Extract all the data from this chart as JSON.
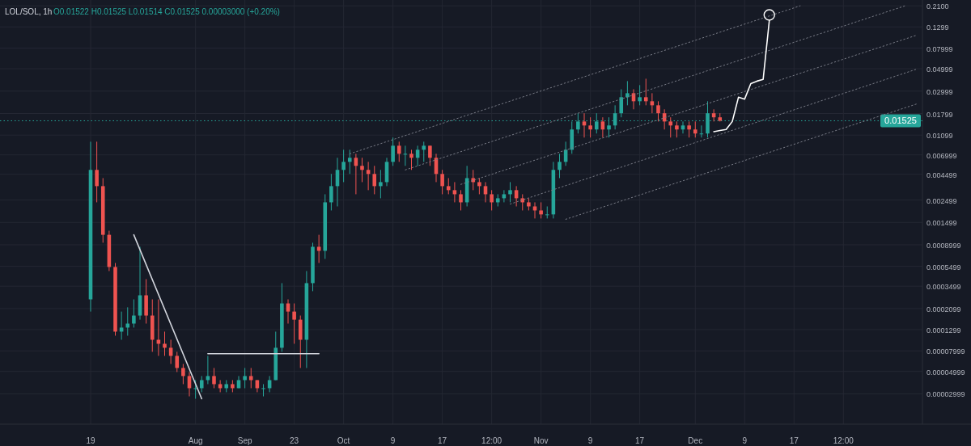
{
  "chart_data": {
    "type": "candlestick",
    "title": "LOL/SOL, 1h",
    "subtitle": "O0.01522 H0.01525 L0.01514 C0.01525 0.00003000 (+0.20%)",
    "log": true,
    "grid": true,
    "ylim": [
      1.5e-05,
      0.24
    ],
    "yticks": [
      {
        "value": 0.21,
        "label": "0.2100"
      },
      0.1299,
      0.07999,
      0.04999,
      0.02999,
      0.01799,
      0.01099,
      0.006999,
      0.004499,
      0.002499,
      0.001499,
      0.0008999,
      0.0005499,
      0.0003499,
      0.0002099,
      0.0001299,
      {
        "value": 7.999e-05,
        "label": "0.00007999"
      },
      {
        "value": 4.999e-05,
        "label": "0.00004999"
      },
      {
        "value": 2.999e-05,
        "label": "0.00002999"
      }
    ],
    "categories": [
      "19",
      null,
      null,
      null,
      null,
      null,
      null,
      null,
      null,
      null,
      null,
      null,
      null,
      null,
      null,
      null,
      null,
      "Aug",
      null,
      null,
      null,
      null,
      null,
      null,
      null,
      "Sep",
      null,
      null,
      null,
      null,
      null,
      null,
      null,
      "23",
      null,
      null,
      null,
      null,
      null,
      null,
      null,
      "Oct",
      null,
      null,
      null,
      null,
      null,
      null,
      null,
      "9",
      null,
      null,
      null,
      null,
      null,
      null,
      null,
      "17",
      null,
      null,
      null,
      null,
      null,
      null,
      null,
      "12:00",
      null,
      null,
      null,
      null,
      null,
      null,
      null,
      "Nov",
      null,
      null,
      null,
      null,
      null,
      null,
      null,
      "9",
      null,
      null,
      null,
      null,
      null,
      null,
      null,
      "17",
      null,
      null,
      null,
      null,
      null,
      null,
      null,
      null,
      "Dec",
      null,
      null,
      null,
      null,
      null,
      null,
      null,
      "9",
      null,
      null,
      null,
      null,
      null,
      null,
      null,
      "17",
      null,
      null,
      null,
      null,
      null,
      null,
      null,
      "12:00",
      null,
      null,
      null,
      null,
      null,
      null,
      null,
      null,
      null,
      null,
      null,
      null
    ],
    "ohlc": [
      [
        0.000259,
        0.00946,
        0.000196,
        0.00497
      ],
      [
        0.00497,
        0.00946,
        0.00237,
        0.00343
      ],
      [
        0.00343,
        0.00412,
        0.000943,
        0.00113
      ],
      [
        0.00113,
        0.00124,
        0.000494,
        0.000542
      ],
      [
        0.000542,
        0.000594,
        0.000113,
        0.000124
      ],
      [
        0.000124,
        0.000196,
        0.000103,
        0.000136
      ],
      [
        0.000136,
        0.000216,
        0.000113,
        0.000149
      ],
      [
        0.000149,
        0.000259,
        0.000136,
        0.000179
      ],
      [
        0.000179,
        0.00086,
        0.000163,
        0.000284
      ],
      [
        0.000284,
        0.000411,
        0.000149,
        0.000179
      ],
      [
        0.000179,
        0.000259,
        7.82e-05,
        0.000103
      ],
      [
        0.000103,
        0.000259,
        7.13e-05,
        9.4e-05
      ],
      [
        9.4e-05,
        0.000124,
        7.13e-05,
        8.58e-05
      ],
      [
        8.58e-05,
        0.000103,
        5.93e-05,
        7.13e-05
      ],
      [
        7.13e-05,
        7.82e-05,
        4.93e-05,
        5.41e-05
      ],
      [
        5.41e-05,
        5.93e-05,
        3.74e-05,
        4.5e-05
      ],
      [
        4.5e-05,
        4.93e-05,
        2.83e-05,
        3.41e-05
      ],
      [
        3.41e-05,
        4.1e-05,
        2.68e-05,
        3.41e-05
      ],
      [
        3.41e-05,
        4.5e-05,
        3.11e-05,
        4.1e-05
      ],
      [
        4.1e-05,
        7.13e-05,
        3.74e-05,
        4.5e-05
      ],
      [
        4.5e-05,
        5.41e-05,
        3.41e-05,
        3.74e-05
      ],
      [
        3.74e-05,
        4.1e-05,
        3.11e-05,
        3.41e-05
      ],
      [
        3.41e-05,
        4.1e-05,
        3.11e-05,
        3.74e-05
      ],
      [
        3.74e-05,
        4.1e-05,
        3.11e-05,
        3.41e-05
      ],
      [
        3.41e-05,
        4.5e-05,
        3.41e-05,
        4.1e-05
      ],
      [
        4.1e-05,
        5.41e-05,
        3.41e-05,
        4.5e-05
      ],
      [
        4.5e-05,
        5.41e-05,
        3.41e-05,
        4.1e-05
      ],
      [
        4.1e-05,
        4.1e-05,
        3.11e-05,
        3.41e-05
      ],
      [
        3.41e-05,
        3.74e-05,
        2.83e-05,
        3.41e-05
      ],
      [
        3.41e-05,
        4.5e-05,
        3.11e-05,
        4.1e-05
      ],
      [
        4.1e-05,
        0.000124,
        4.1e-05,
        8.58e-05
      ],
      [
        8.58e-05,
        0.000375,
        7.82e-05,
        0.000236
      ],
      [
        0.000236,
        0.000259,
        0.000149,
        0.000196
      ],
      [
        0.000196,
        0.000236,
        9.4e-05,
        0.000163
      ],
      [
        0.000163,
        0.000179,
        5.41e-05,
        0.000103
      ],
      [
        0.000103,
        0.000494,
        5.41e-05,
        0.000375
      ],
      [
        0.000375,
        0.000943,
        0.000312,
        0.00086
      ],
      [
        0.00086,
        0.00113,
        0.000594,
        0.000784
      ],
      [
        0.000784,
        0.00285,
        0.000652,
        0.00237
      ],
      [
        0.00237,
        0.00453,
        0.00197,
        0.00343
      ],
      [
        0.00343,
        0.00655,
        0.00216,
        0.00497
      ],
      [
        0.00497,
        0.00787,
        0.00376,
        0.00597
      ],
      [
        0.00597,
        0.00787,
        0.00453,
        0.00655
      ],
      [
        0.00655,
        0.00718,
        0.00285,
        0.00545
      ],
      [
        0.00545,
        0.00655,
        0.00376,
        0.00497
      ],
      [
        0.00497,
        0.00597,
        0.00313,
        0.00453
      ],
      [
        0.00453,
        0.00545,
        0.00285,
        0.00343
      ],
      [
        0.00343,
        0.00497,
        0.0026,
        0.00376
      ],
      [
        0.00376,
        0.00655,
        0.00343,
        0.00597
      ],
      [
        0.00597,
        0.0104,
        0.00545,
        0.00863
      ],
      [
        0.00863,
        0.00946,
        0.00597,
        0.00718
      ],
      [
        0.00718,
        0.00863,
        0.00545,
        0.00718
      ],
      [
        0.00718,
        0.00787,
        0.00497,
        0.00655
      ],
      [
        0.00655,
        0.00863,
        0.00545,
        0.00787
      ],
      [
        0.00787,
        0.00946,
        0.00597,
        0.00863
      ],
      [
        0.00863,
        0.00863,
        0.00545,
        0.00655
      ],
      [
        0.00655,
        0.00718,
        0.00376,
        0.00453
      ],
      [
        0.00453,
        0.00497,
        0.00285,
        0.00343
      ],
      [
        0.00343,
        0.00412,
        0.00285,
        0.00313
      ],
      [
        0.00313,
        0.00376,
        0.00237,
        0.00285
      ],
      [
        0.00285,
        0.00313,
        0.00197,
        0.00237
      ],
      [
        0.00237,
        0.00545,
        0.00216,
        0.00412
      ],
      [
        0.00412,
        0.00497,
        0.00313,
        0.00376
      ],
      [
        0.00376,
        0.00412,
        0.00285,
        0.00343
      ],
      [
        0.00343,
        0.00376,
        0.00237,
        0.00285
      ],
      [
        0.00285,
        0.00313,
        0.00197,
        0.00237
      ],
      [
        0.00237,
        0.00285,
        0.00216,
        0.0026
      ],
      [
        0.0026,
        0.00313,
        0.00237,
        0.00285
      ],
      [
        0.00285,
        0.00376,
        0.00237,
        0.00313
      ],
      [
        0.00313,
        0.00343,
        0.00216,
        0.0026
      ],
      [
        0.0026,
        0.00285,
        0.00197,
        0.00237
      ],
      [
        0.00237,
        0.0026,
        0.00197,
        0.00216
      ],
      [
        0.00216,
        0.00237,
        0.00164,
        0.00197
      ],
      [
        0.00197,
        0.00237,
        0.00164,
        0.0018
      ],
      [
        0.0018,
        0.00216,
        0.00164,
        0.0018
      ],
      [
        0.0018,
        0.00597,
        0.00164,
        0.00497
      ],
      [
        0.00497,
        0.00718,
        0.00412,
        0.00597
      ],
      [
        0.00597,
        0.00946,
        0.00545,
        0.00787
      ],
      [
        0.00787,
        0.015,
        0.00718,
        0.0125
      ],
      [
        0.0125,
        0.0181,
        0.0114,
        0.015
      ],
      [
        0.015,
        0.0181,
        0.0104,
        0.0137
      ],
      [
        0.0137,
        0.0165,
        0.0104,
        0.0125
      ],
      [
        0.0125,
        0.0181,
        0.0114,
        0.015
      ],
      [
        0.015,
        0.0165,
        0.0104,
        0.0125
      ],
      [
        0.0125,
        0.0165,
        0.0104,
        0.0137
      ],
      [
        0.0137,
        0.0217,
        0.0125,
        0.0181
      ],
      [
        0.0181,
        0.0313,
        0.0165,
        0.0261
      ],
      [
        0.0261,
        0.0377,
        0.0217,
        0.0286
      ],
      [
        0.0286,
        0.0313,
        0.0198,
        0.0238
      ],
      [
        0.0238,
        0.0344,
        0.0217,
        0.0261
      ],
      [
        0.0261,
        0.0398,
        0.0217,
        0.0238
      ],
      [
        0.0238,
        0.0286,
        0.0181,
        0.0217
      ],
      [
        0.0217,
        0.0238,
        0.015,
        0.0181
      ],
      [
        0.0181,
        0.0198,
        0.0125,
        0.015
      ],
      [
        0.015,
        0.0165,
        0.0104,
        0.0137
      ],
      [
        0.0137,
        0.015,
        0.0104,
        0.0125
      ],
      [
        0.0125,
        0.015,
        0.0114,
        0.0137
      ],
      [
        0.0137,
        0.015,
        0.0104,
        0.0125
      ],
      [
        0.0125,
        0.015,
        0.0104,
        0.0114
      ],
      [
        0.0114,
        0.0137,
        0.0104,
        0.0114
      ],
      [
        0.0114,
        0.0238,
        0.0104,
        0.0181
      ],
      [
        0.0181,
        0.0198,
        0.015,
        0.0165
      ],
      [
        0.0165,
        0.0181,
        0.015,
        0.01525
      ],
      null,
      null,
      null,
      null,
      null,
      null,
      null,
      null,
      null,
      null,
      null,
      null,
      null,
      null,
      null,
      null,
      null,
      null,
      null,
      null,
      null,
      null,
      null,
      null,
      null,
      null,
      null,
      null,
      null,
      null,
      null,
      null
    ],
    "series": [
      {
        "type": "line",
        "color": "#d1d4dc",
        "line_style": "solid",
        "values": [
          null,
          null,
          null,
          null,
          null,
          null,
          null,
          0.00113,
          null,
          null,
          null,
          null,
          null,
          null,
          null,
          null,
          null,
          null,
          2.68e-05,
          null,
          null,
          null,
          null,
          null,
          null,
          null,
          null,
          null,
          null,
          null,
          null,
          null,
          null,
          null,
          null,
          null,
          null,
          null,
          null,
          null,
          null,
          null,
          null,
          null,
          null,
          null,
          null,
          null,
          null,
          null,
          null,
          null,
          null,
          null,
          null,
          null,
          null,
          null,
          null,
          null,
          null,
          null,
          null,
          null,
          null,
          null,
          null,
          null,
          null,
          null,
          null,
          null,
          null,
          null,
          null,
          null,
          null,
          null,
          null,
          null,
          null,
          null,
          null,
          null,
          null,
          null,
          null,
          null,
          null,
          null,
          null,
          null,
          null,
          null,
          null,
          null,
          null,
          null,
          null,
          null,
          null,
          null,
          null,
          null,
          null,
          null,
          null,
          null,
          null,
          null,
          null,
          null,
          null,
          null,
          null,
          null,
          null,
          null,
          null,
          null,
          null,
          null,
          null,
          null,
          null,
          null,
          null,
          null,
          null,
          null,
          null,
          null,
          null,
          null,
          null
        ]
      },
      {
        "type": "line",
        "color": "#d1d4dc",
        "line_style": "solid",
        "values": [
          null,
          null,
          null,
          null,
          null,
          null,
          null,
          null,
          null,
          null,
          null,
          null,
          null,
          null,
          null,
          null,
          null,
          null,
          null,
          7.5e-05,
          null,
          null,
          null,
          null,
          null,
          null,
          null,
          null,
          null,
          null,
          null,
          null,
          null,
          null,
          null,
          null,
          null,
          7.5e-05,
          null,
          null,
          null,
          null,
          null,
          null,
          null,
          null,
          null,
          null,
          null,
          null,
          null,
          null,
          null,
          null,
          null,
          null,
          null,
          null,
          null,
          null,
          null,
          null,
          null,
          null,
          null,
          null,
          null,
          null,
          null,
          null,
          null,
          null,
          null,
          null,
          null,
          null,
          null,
          null,
          null,
          null,
          null,
          null,
          null,
          null,
          null,
          null,
          null,
          null,
          null,
          null,
          null,
          null,
          null,
          null,
          null,
          null,
          null,
          null,
          null,
          null,
          null,
          null,
          null,
          null,
          null,
          null,
          null,
          null,
          null,
          null,
          null,
          null,
          null,
          null,
          null,
          null,
          null,
          null,
          null,
          null,
          null,
          null,
          null,
          null,
          null,
          null,
          null,
          null,
          null,
          null,
          null,
          null,
          null,
          null,
          null
        ]
      },
      {
        "type": "line",
        "color": "#787b86",
        "line_style": "dotted",
        "values": [
          null,
          null,
          null,
          null,
          null,
          null,
          null,
          null,
          null,
          null,
          null,
          null,
          null,
          null,
          null,
          null,
          null,
          null,
          null,
          null,
          null,
          null,
          null,
          null,
          null,
          null,
          null,
          null,
          null,
          null,
          null,
          null,
          null,
          null,
          null,
          null,
          null,
          null,
          null,
          null,
          null,
          null,
          0.00718,
          null,
          null,
          null,
          null,
          null,
          null,
          null,
          null,
          null,
          null,
          null,
          null,
          null,
          null,
          null,
          null,
          null,
          null,
          null,
          null,
          null,
          null,
          null,
          null,
          null,
          null,
          null,
          null,
          null,
          null,
          null,
          null,
          null,
          null,
          null,
          null,
          null,
          null,
          null,
          null,
          null,
          null,
          null,
          null,
          null,
          null,
          null,
          null,
          null,
          null,
          null,
          null,
          null,
          null,
          null,
          null,
          null,
          null,
          null,
          null,
          null,
          null,
          null,
          null,
          null,
          null,
          null,
          null,
          null,
          null,
          null,
          null,
          0.21,
          null,
          null,
          null,
          null,
          null,
          null,
          null,
          null,
          null,
          null,
          null,
          null,
          null,
          null,
          null,
          null,
          null,
          null,
          null
        ]
      },
      {
        "type": "line",
        "color": "#787b86",
        "line_style": "dotted",
        "values": [
          null,
          null,
          null,
          null,
          null,
          null,
          null,
          null,
          null,
          null,
          null,
          null,
          null,
          null,
          null,
          null,
          null,
          null,
          null,
          null,
          null,
          null,
          null,
          null,
          null,
          null,
          null,
          null,
          null,
          null,
          null,
          null,
          null,
          null,
          null,
          null,
          null,
          null,
          null,
          null,
          null,
          null,
          null,
          null,
          null,
          null,
          null,
          null,
          null,
          null,
          null,
          0.00497,
          null,
          null,
          null,
          null,
          null,
          null,
          null,
          null,
          null,
          null,
          null,
          null,
          null,
          null,
          null,
          null,
          null,
          null,
          null,
          null,
          null,
          null,
          null,
          null,
          null,
          null,
          null,
          null,
          null,
          null,
          null,
          null,
          null,
          null,
          null,
          null,
          null,
          null,
          null,
          null,
          null,
          null,
          null,
          null,
          null,
          null,
          null,
          null,
          null,
          null,
          null,
          null,
          null,
          null,
          null,
          null,
          null,
          null,
          null,
          null,
          null,
          null,
          null,
          null,
          null,
          null,
          null,
          null,
          null,
          null,
          null,
          null,
          null,
          null,
          null,
          null,
          null,
          null,
          null,
          null,
          0.21,
          null,
          null
        ]
      },
      {
        "type": "line",
        "color": "#787b86",
        "line_style": "dotted",
        "values": [
          null,
          null,
          null,
          null,
          null,
          null,
          null,
          null,
          null,
          null,
          null,
          null,
          null,
          null,
          null,
          null,
          null,
          null,
          null,
          null,
          null,
          null,
          null,
          null,
          null,
          null,
          null,
          null,
          null,
          null,
          null,
          null,
          null,
          null,
          null,
          null,
          null,
          null,
          null,
          null,
          null,
          null,
          null,
          null,
          null,
          null,
          null,
          null,
          null,
          null,
          null,
          null,
          null,
          null,
          null,
          null,
          null,
          null,
          null,
          null,
          0.00357,
          null,
          null,
          null,
          null,
          null,
          null,
          null,
          null,
          null,
          null,
          null,
          null,
          null,
          null,
          null,
          null,
          null,
          null,
          null,
          null,
          null,
          null,
          null,
          null,
          null,
          null,
          null,
          null,
          null,
          null,
          null,
          null,
          null,
          null,
          null,
          null,
          null,
          null,
          null,
          null,
          null,
          null,
          null,
          null,
          null,
          null,
          null,
          null,
          null,
          null,
          null,
          null,
          null,
          null,
          null,
          null,
          null,
          null,
          null,
          null,
          null,
          null,
          null,
          null,
          null,
          null,
          null,
          null,
          null,
          null,
          null,
          null,
          null,
          0.108
        ]
      },
      {
        "type": "line",
        "color": "#787b86",
        "line_style": "dotted",
        "values": [
          null,
          null,
          null,
          null,
          null,
          null,
          null,
          null,
          null,
          null,
          null,
          null,
          null,
          null,
          null,
          null,
          null,
          null,
          null,
          null,
          null,
          null,
          null,
          null,
          null,
          null,
          null,
          null,
          null,
          null,
          null,
          null,
          null,
          null,
          null,
          null,
          null,
          null,
          null,
          null,
          null,
          null,
          null,
          null,
          null,
          null,
          null,
          null,
          null,
          null,
          null,
          null,
          null,
          null,
          null,
          null,
          null,
          null,
          null,
          null,
          null,
          null,
          null,
          null,
          null,
          null,
          null,
          null,
          0.00228,
          null,
          null,
          null,
          null,
          null,
          null,
          null,
          null,
          null,
          null,
          null,
          null,
          null,
          null,
          null,
          null,
          null,
          null,
          null,
          null,
          null,
          null,
          null,
          null,
          null,
          null,
          null,
          null,
          null,
          null,
          null,
          null,
          null,
          null,
          null,
          null,
          null,
          null,
          null,
          null,
          null,
          null,
          null,
          null,
          null,
          null,
          null,
          null,
          null,
          null,
          null,
          null,
          null,
          null,
          null,
          null,
          null,
          null,
          null,
          null,
          null,
          null,
          null,
          null,
          null,
          0.0498
        ]
      },
      {
        "type": "line",
        "color": "#787b86",
        "line_style": "dotted",
        "values": [
          null,
          null,
          null,
          null,
          null,
          null,
          null,
          null,
          null,
          null,
          null,
          null,
          null,
          null,
          null,
          null,
          null,
          null,
          null,
          null,
          null,
          null,
          null,
          null,
          null,
          null,
          null,
          null,
          null,
          null,
          null,
          null,
          null,
          null,
          null,
          null,
          null,
          null,
          null,
          null,
          null,
          null,
          null,
          null,
          null,
          null,
          null,
          null,
          null,
          null,
          null,
          null,
          null,
          null,
          null,
          null,
          null,
          null,
          null,
          null,
          null,
          null,
          null,
          null,
          null,
          null,
          null,
          null,
          null,
          null,
          null,
          null,
          null,
          null,
          null,
          null,
          null,
          0.00161,
          null,
          null,
          null,
          null,
          null,
          null,
          null,
          null,
          null,
          null,
          null,
          null,
          null,
          null,
          null,
          null,
          null,
          null,
          null,
          null,
          null,
          null,
          null,
          null,
          null,
          null,
          null,
          null,
          null,
          null,
          null,
          null,
          null,
          null,
          null,
          null,
          null,
          null,
          null,
          null,
          null,
          null,
          null,
          null,
          null,
          null,
          null,
          null,
          null,
          null,
          null,
          null,
          null,
          null,
          null,
          null,
          0.0225
        ]
      },
      {
        "type": "line",
        "color": "#ffffff",
        "line_style": "solid",
        "values": [
          null,
          null,
          null,
          null,
          null,
          null,
          null,
          null,
          null,
          null,
          null,
          null,
          null,
          null,
          null,
          null,
          null,
          null,
          null,
          null,
          null,
          null,
          null,
          null,
          null,
          null,
          null,
          null,
          null,
          null,
          null,
          null,
          null,
          null,
          null,
          null,
          null,
          null,
          null,
          null,
          null,
          null,
          null,
          null,
          null,
          null,
          null,
          null,
          null,
          null,
          null,
          null,
          null,
          null,
          null,
          null,
          null,
          null,
          null,
          null,
          null,
          null,
          null,
          null,
          null,
          null,
          null,
          null,
          null,
          null,
          null,
          null,
          null,
          null,
          null,
          null,
          null,
          null,
          null,
          null,
          null,
          null,
          null,
          null,
          null,
          null,
          null,
          null,
          null,
          null,
          null,
          null,
          null,
          null,
          null,
          null,
          null,
          null,
          null,
          null,
          null,
          0.0119,
          0.0122,
          0.0125,
          0.015,
          0.0261,
          0.025,
          0.0356,
          0.0377,
          0.0392,
          0.15,
          null,
          null,
          null,
          null,
          null,
          null,
          null,
          null,
          null,
          null,
          null,
          null,
          null,
          null,
          null,
          null,
          null,
          null,
          null,
          null,
          null,
          null,
          null,
          null
        ]
      }
    ],
    "ref_lines": [
      {
        "axis": "y",
        "value": 0.01525,
        "label": "0.01525",
        "color": "#26a69a",
        "line_style": "dotted"
      }
    ]
  }
}
